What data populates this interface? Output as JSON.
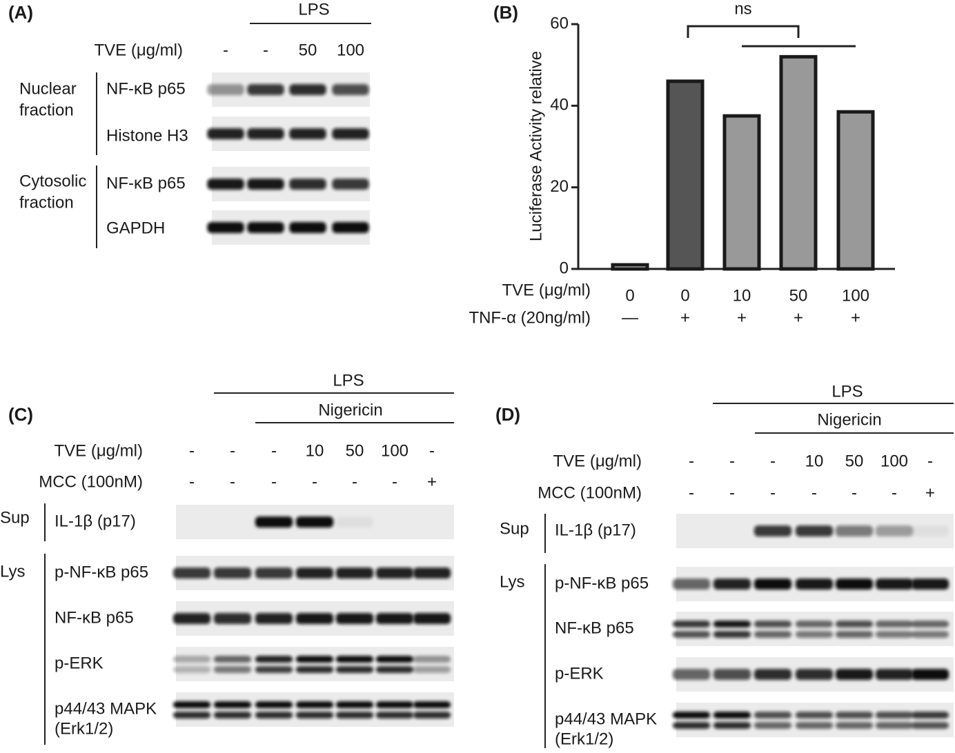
{
  "panel_a": {
    "label": "(A)",
    "lps": "LPS",
    "tve_label": "TVE (μg/ml)",
    "tve": [
      "-",
      "-",
      "50",
      "100"
    ],
    "groups": [
      {
        "name": [
          "Nuclear",
          "fraction"
        ],
        "rows": [
          "NF-κB p65",
          "Histone H3"
        ]
      },
      {
        "name": [
          "Cytosolic",
          "fraction"
        ],
        "rows": [
          "NF-κB p65",
          "GAPDH"
        ]
      }
    ]
  },
  "chart_data": {
    "type": "bar",
    "label": "(B)",
    "ylabel": "Luciferase Activity relative",
    "categories": [
      "0",
      "0",
      "10",
      "50",
      "100"
    ],
    "values": [
      1,
      46,
      37.5,
      52,
      38.5
    ],
    "colors": [
      "#ffffff",
      "#555555",
      "#999999",
      "#999999",
      "#999999"
    ],
    "x_row_labels": [
      "TVE (μg/ml)",
      "TNF-α (20ng/ml)"
    ],
    "tnf": [
      "—",
      "+",
      "+",
      "+",
      "+"
    ],
    "annotation": "ns",
    "ylim": [
      0,
      60
    ],
    "yticks": [
      0,
      20,
      40,
      60
    ]
  },
  "panel_c": {
    "label": "(C)",
    "lps": "LPS",
    "nigericin": "Nigericin",
    "tve_label": "TVE (μg/ml)",
    "tve": [
      "-",
      "-",
      "-",
      "10",
      "50",
      "100",
      "-"
    ],
    "mcc_label": "MCC (100nM)",
    "mcc": [
      "-",
      "-",
      "-",
      "-",
      "-",
      "-",
      "+"
    ],
    "sup": "Sup",
    "lys": "Lys",
    "rows": [
      [
        "IL-1β (p17)"
      ],
      [
        "p-NF-κB p65"
      ],
      [
        "NF-κB p65"
      ],
      [
        "p-ERK"
      ],
      [
        "p44/43 MAPK",
        "(Erk1/2)"
      ]
    ]
  },
  "panel_d": {
    "label": "(D)",
    "lps": "LPS",
    "nigericin": "Nigericin",
    "tve_label": "TVE (μg/ml)",
    "tve": [
      "-",
      "-",
      "-",
      "10",
      "50",
      "100",
      "-"
    ],
    "mcc_label": "MCC (100nM)",
    "mcc": [
      "-",
      "-",
      "-",
      "-",
      "-",
      "-",
      "+"
    ],
    "sup": "Sup",
    "lys": "Lys",
    "rows": [
      [
        "IL-1β (p17)"
      ],
      [
        "p-NF-κB p65"
      ],
      [
        "NF-κB p65"
      ],
      [
        "p-ERK"
      ],
      [
        "p44/43 MAPK",
        "(Erk1/2)"
      ]
    ]
  }
}
